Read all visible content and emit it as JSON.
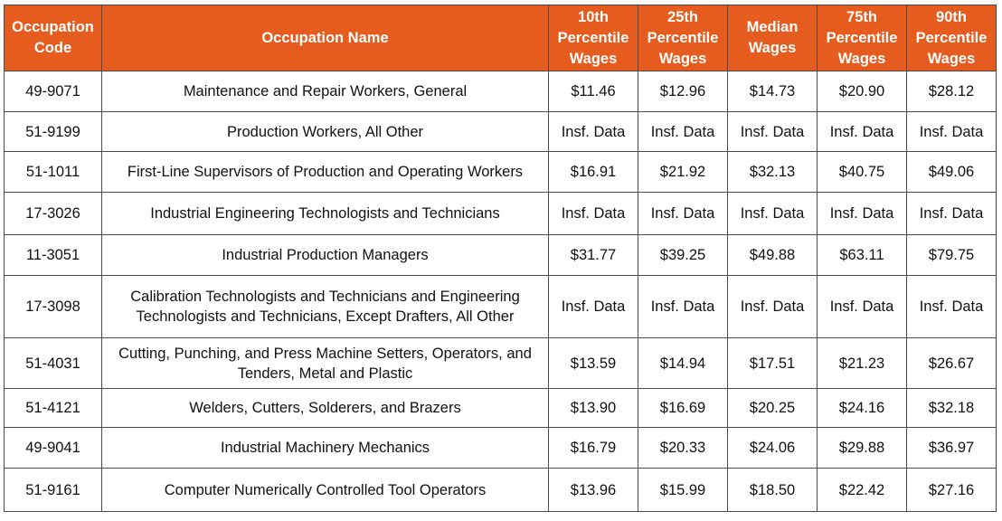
{
  "table": {
    "headers": {
      "code": "Occupation Code",
      "name": "Occupation Name",
      "p10": "10th Percentile Wages",
      "p25": "25th Percentile Wages",
      "median": "Median Wages",
      "p75": "75th Percentile Wages",
      "p90": "90th Percentile Wages"
    },
    "rows": [
      {
        "code": "49-9071",
        "name": "Maintenance and Repair Workers, General",
        "p10": "$11.46",
        "p25": "$12.96",
        "median": "$14.73",
        "p75": "$20.90",
        "p90": "$28.12"
      },
      {
        "code": "51-9199",
        "name": "Production Workers, All Other",
        "p10": "Insf. Data",
        "p25": "Insf. Data",
        "median": "Insf. Data",
        "p75": "Insf. Data",
        "p90": "Insf. Data"
      },
      {
        "code": "51-1011",
        "name": "First-Line Supervisors of Production and Operating Workers",
        "p10": "$16.91",
        "p25": "$21.92",
        "median": "$32.13",
        "p75": "$40.75",
        "p90": "$49.06"
      },
      {
        "code": "17-3026",
        "name": "Industrial Engineering Technologists and Technicians",
        "p10": "Insf. Data",
        "p25": "Insf. Data",
        "median": "Insf. Data",
        "p75": "Insf. Data",
        "p90": "Insf. Data"
      },
      {
        "code": "11-3051",
        "name": "Industrial Production Managers",
        "p10": "$31.77",
        "p25": "$39.25",
        "median": "$49.88",
        "p75": "$63.11",
        "p90": "$79.75"
      },
      {
        "code": "17-3098",
        "name": "Calibration Technologists and Technicians and Engineering Technologists and Technicians, Except Drafters, All Other",
        "p10": "Insf. Data",
        "p25": "Insf. Data",
        "median": "Insf. Data",
        "p75": "Insf. Data",
        "p90": "Insf. Data"
      },
      {
        "code": "51-4031",
        "name": "Cutting, Punching, and Press Machine Setters, Operators, and Tenders, Metal and Plastic",
        "p10": "$13.59",
        "p25": "$14.94",
        "median": "$17.51",
        "p75": "$21.23",
        "p90": "$26.67"
      },
      {
        "code": "51-4121",
        "name": "Welders, Cutters, Solderers, and Brazers",
        "p10": "$13.90",
        "p25": "$16.69",
        "median": "$20.25",
        "p75": "$24.16",
        "p90": "$32.18"
      },
      {
        "code": "49-9041",
        "name": "Industrial Machinery Mechanics",
        "p10": "$16.79",
        "p25": "$20.33",
        "median": "$24.06",
        "p75": "$29.88",
        "p90": "$36.97"
      },
      {
        "code": "51-9161",
        "name": "Computer Numerically Controlled Tool Operators",
        "p10": "$13.96",
        "p25": "$15.99",
        "median": "$18.50",
        "p75": "$22.42",
        "p90": "$27.16"
      }
    ]
  }
}
